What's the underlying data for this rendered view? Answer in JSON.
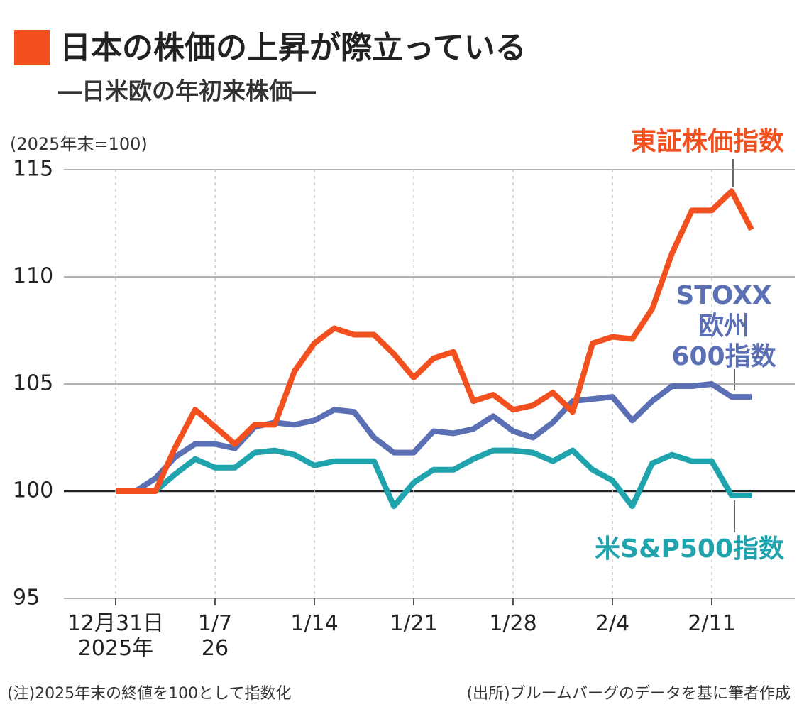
{
  "chart_data": {
    "type": "line",
    "title": "日本の株価の上昇が際立っている",
    "subtitle": "―日米欧の年初来株価―",
    "y_axis_label": "(2025年末=100)",
    "categories": [
      "12月31日\n2025年",
      null,
      null,
      null,
      null,
      "1/7\n26",
      null,
      null,
      null,
      null,
      "1/14",
      null,
      null,
      null,
      null,
      "1/21",
      null,
      null,
      null,
      null,
      "1/28",
      null,
      null,
      null,
      null,
      "2/4",
      null,
      null,
      null,
      null,
      "2/11",
      null,
      null
    ],
    "series": [
      {
        "name": "東証株価指数",
        "color": "#f2501e",
        "values": [
          100,
          100,
          100,
          102.05,
          103.8,
          103.0,
          102.2,
          103.1,
          103.1,
          105.6,
          106.9,
          107.6,
          107.3,
          107.3,
          106.4,
          105.3,
          106.2,
          106.5,
          104.2,
          104.5,
          103.8,
          104.0,
          104.6,
          103.7,
          106.9,
          107.2,
          107.1,
          108.5,
          111.1,
          113.1,
          113.1,
          114.0,
          112.2
        ]
      },
      {
        "name": "STOXX\n欧州\n600指数",
        "color": "#5b6fb5",
        "values": [
          100,
          100,
          100.6,
          101.6,
          102.2,
          102.2,
          102.0,
          103.0,
          103.2,
          103.1,
          103.3,
          103.8,
          103.7,
          102.5,
          101.8,
          101.8,
          102.8,
          102.7,
          102.9,
          103.5,
          102.8,
          102.5,
          103.2,
          104.2,
          104.3,
          104.4,
          103.3,
          104.2,
          104.9,
          104.9,
          105.0,
          104.4,
          104.4
        ]
      },
      {
        "name": "米S&P500指数",
        "color": "#1fa3ad",
        "values": [
          100,
          100,
          100,
          100.8,
          101.5,
          101.1,
          101.1,
          101.8,
          101.9,
          101.7,
          101.2,
          101.4,
          101.4,
          101.4,
          99.3,
          100.4,
          101.0,
          101.0,
          101.5,
          101.9,
          101.9,
          101.8,
          101.4,
          101.9,
          101.0,
          100.5,
          99.3,
          101.3,
          101.7,
          101.4,
          101.4,
          99.8,
          99.8
        ]
      }
    ],
    "ylim": [
      95,
      115
    ],
    "yticks": [
      95,
      100,
      105,
      110,
      115
    ],
    "grid": true,
    "baseline": 100,
    "notes": [
      "(注)2025年末の終値を100として指数化",
      "(出所)ブルームバーグのデータを基に筆者作成"
    ]
  }
}
